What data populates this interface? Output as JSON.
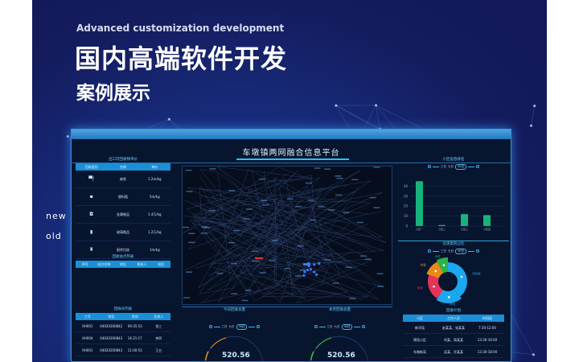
{
  "hero": {
    "subtitle_en": "Advanced customization development",
    "title": "国内高端软件开发",
    "subtitle": "案例展示",
    "side_new": "new",
    "side_old": "old"
  },
  "dashboard": {
    "title": "车墩镇两网融合信息平台",
    "price_table": {
      "title": "出口可回收物单价",
      "headers": [
        "回收类别",
        "名称",
        "单价"
      ],
      "rows": [
        {
          "icon": "paper-icon",
          "name": "废纸",
          "price": "1.2m/kg"
        },
        {
          "icon": "bottle-icon",
          "name": "塑料瓶",
          "price": "5m/kg"
        },
        {
          "icon": "metal-icon",
          "name": "金属制品",
          "price": "1.4万/kg"
        },
        {
          "icon": "glass-icon",
          "name": "玻璃制品",
          "price": "1.2万/kg"
        },
        {
          "icon": "kitchen-waste-icon",
          "name": "厨余垃圾",
          "price": "1m/kg"
        }
      ]
    },
    "station_table": {
      "title": "回收站点列表",
      "headers": [
        "序号",
        "站点名称",
        "地址",
        "联系人",
        "电话"
      ]
    },
    "worker_table": {
      "title": "回收员列表",
      "headers": [
        "工号",
        "电话",
        "时间",
        "负责人"
      ],
      "rows": [
        [
          "XH001",
          "04020200842",
          "09:35:53",
          "张三"
        ],
        [
          "XH004",
          "04020200843",
          "14:21:17",
          "李四"
        ],
        [
          "XH001",
          "04020200843",
          "11:00:53",
          "王五"
        ]
      ]
    },
    "gauges": [
      {
        "title": "今日回收总量",
        "value": "520.56",
        "color": "#e8952a",
        "toggle": [
          "三日",
          "七日",
          "30日"
        ]
      },
      {
        "title": "本月回收总量",
        "value": "520.56",
        "color": "#3ec43e",
        "toggle": [
          "三日",
          "七日",
          "30日"
        ]
      }
    ],
    "bar_chart": {
      "title": "小区投放排名",
      "toggle": [
        "三日",
        "七日",
        "30日"
      ],
      "yticks": [
        0,
        10,
        20,
        30,
        40
      ],
      "categories": [
        "小区一",
        "小区二",
        "小区三",
        "小区四"
      ],
      "values": [
        45,
        1,
        12,
        11
      ],
      "color": "#17b37a"
    },
    "donut": {
      "title": "垃圾类别占比",
      "toggle": [
        "三日",
        "七日",
        "30日"
      ],
      "segments": [
        {
          "label": "可回收",
          "value": 40,
          "color": "#1ba8ee"
        },
        {
          "label": "其他",
          "value": 20,
          "color": "#1ba8ee"
        },
        {
          "label": "厨余",
          "value": 22,
          "color": "#e8325a"
        },
        {
          "label": "有害",
          "value": 12,
          "color": "#e88a1a"
        },
        {
          "label": "大件",
          "value": 8,
          "color": "#29b34a"
        }
      ]
    },
    "plan_table": {
      "title": "回收计划",
      "headers": [
        "小区",
        "工作人员",
        "时间段"
      ],
      "rows": [
        [
          "新华苑",
          "赵某某、张某某",
          "7:30-12:00"
        ],
        [
          "锦苑小区",
          "刘某、周某某",
          "13:30-16:00"
        ],
        [
          "车墩新苑",
          "吴某、孙某某",
          "13:30-18:00"
        ]
      ]
    }
  }
}
